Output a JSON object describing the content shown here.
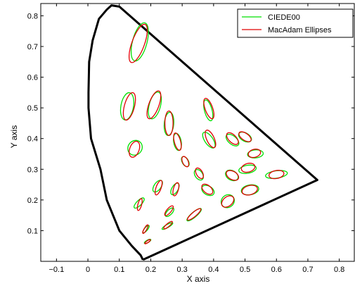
{
  "chart_data": {
    "type": "scatter",
    "title": "",
    "xlabel": "X axis",
    "ylabel": "Y axis",
    "xlim": [
      -0.15,
      0.85
    ],
    "ylim": [
      0.0,
      0.84
    ],
    "xticks": [
      -0.1,
      0,
      0.1,
      0.2,
      0.3,
      0.4,
      0.5,
      0.6,
      0.7,
      0.8
    ],
    "xtick_labels": [
      "−0.1",
      "0",
      "0.1",
      "0.2",
      "0.3",
      "0.4",
      "0.5",
      "0.6",
      "0.7",
      "0.8"
    ],
    "yticks": [
      0.1,
      0.2,
      0.3,
      0.4,
      0.5,
      0.6,
      0.7,
      0.8
    ],
    "ytick_labels": [
      "0.1",
      "0.2",
      "0.3",
      "0.4",
      "0.5",
      "0.6",
      "0.7",
      "0.8"
    ],
    "grid": false,
    "legend_position": "top-right",
    "colors": {
      "ciede00": "#00e000",
      "macadam": "#e00000",
      "locus": "#000000"
    },
    "spectral_locus": [
      [
        0.175,
        0.005
      ],
      [
        0.168,
        0.02
      ],
      [
        0.14,
        0.05
      ],
      [
        0.1,
        0.1
      ],
      [
        0.06,
        0.2
      ],
      [
        0.04,
        0.3
      ],
      [
        0.01,
        0.4
      ],
      [
        0.002,
        0.5
      ],
      [
        0.002,
        0.55
      ],
      [
        0.004,
        0.65
      ],
      [
        0.015,
        0.72
      ],
      [
        0.035,
        0.79
      ],
      [
        0.06,
        0.82
      ],
      [
        0.075,
        0.834
      ],
      [
        0.1,
        0.83
      ],
      [
        0.73,
        0.265
      ],
      [
        0.175,
        0.005
      ]
    ],
    "series": [
      {
        "name": "CIEDE00",
        "ellipses": [
          {
            "cx": 0.165,
            "cy": 0.715,
            "rx": 0.023,
            "ry": 0.064,
            "angle": 15
          },
          {
            "cx": 0.213,
            "cy": 0.508,
            "rx": 0.018,
            "ry": 0.045,
            "angle": 15
          },
          {
            "cx": 0.125,
            "cy": 0.505,
            "rx": 0.02,
            "ry": 0.045,
            "angle": 10
          },
          {
            "cx": 0.258,
            "cy": 0.448,
            "rx": 0.015,
            "ry": 0.038,
            "angle": 5
          },
          {
            "cx": 0.383,
            "cy": 0.492,
            "rx": 0.012,
            "ry": 0.035,
            "angle": -15
          },
          {
            "cx": 0.285,
            "cy": 0.389,
            "rx": 0.012,
            "ry": 0.028,
            "angle": -10
          },
          {
            "cx": 0.385,
            "cy": 0.395,
            "rx": 0.013,
            "ry": 0.03,
            "angle": -35
          },
          {
            "cx": 0.46,
            "cy": 0.395,
            "rx": 0.013,
            "ry": 0.025,
            "angle": -50
          },
          {
            "cx": 0.5,
            "cy": 0.405,
            "rx": 0.013,
            "ry": 0.023,
            "angle": -60
          },
          {
            "cx": 0.15,
            "cy": 0.37,
            "rx": 0.022,
            "ry": 0.025,
            "angle": 40
          },
          {
            "cx": 0.31,
            "cy": 0.325,
            "rx": 0.01,
            "ry": 0.018,
            "angle": -30
          },
          {
            "cx": 0.533,
            "cy": 0.35,
            "rx": 0.025,
            "ry": 0.013,
            "angle": -5
          },
          {
            "cx": 0.353,
            "cy": 0.282,
            "rx": 0.012,
            "ry": 0.019,
            "angle": -35
          },
          {
            "cx": 0.458,
            "cy": 0.28,
            "rx": 0.015,
            "ry": 0.022,
            "angle": -60
          },
          {
            "cx": 0.508,
            "cy": 0.3,
            "rx": 0.028,
            "ry": 0.013,
            "angle": -10
          },
          {
            "cx": 0.6,
            "cy": 0.283,
            "rx": 0.035,
            "ry": 0.012,
            "angle": -8
          },
          {
            "cx": 0.222,
            "cy": 0.245,
            "rx": 0.011,
            "ry": 0.022,
            "angle": 35
          },
          {
            "cx": 0.277,
            "cy": 0.236,
            "rx": 0.01,
            "ry": 0.021,
            "angle": 30
          },
          {
            "cx": 0.382,
            "cy": 0.231,
            "rx": 0.014,
            "ry": 0.022,
            "angle": -60
          },
          {
            "cx": 0.516,
            "cy": 0.233,
            "rx": 0.028,
            "ry": 0.016,
            "angle": -10
          },
          {
            "cx": 0.163,
            "cy": 0.19,
            "rx": 0.008,
            "ry": 0.022,
            "angle": 45
          },
          {
            "cx": 0.445,
            "cy": 0.196,
            "rx": 0.022,
            "ry": 0.02,
            "angle": -40
          },
          {
            "cx": 0.26,
            "cy": 0.16,
            "rx": 0.008,
            "ry": 0.018,
            "angle": 45
          },
          {
            "cx": 0.338,
            "cy": 0.152,
            "rx": 0.008,
            "ry": 0.03,
            "angle": 50
          },
          {
            "cx": 0.185,
            "cy": 0.105,
            "rx": 0.005,
            "ry": 0.015,
            "angle": 40
          },
          {
            "cx": 0.253,
            "cy": 0.115,
            "rx": 0.005,
            "ry": 0.02,
            "angle": 60
          },
          {
            "cx": 0.19,
            "cy": 0.065,
            "rx": 0.004,
            "ry": 0.012,
            "angle": 60
          }
        ]
      },
      {
        "name": "MacAdam Ellipses",
        "ellipses": [
          {
            "cx": 0.16,
            "cy": 0.71,
            "rx": 0.02,
            "ry": 0.066,
            "angle": 20
          },
          {
            "cx": 0.21,
            "cy": 0.51,
            "rx": 0.016,
            "ry": 0.048,
            "angle": 20
          },
          {
            "cx": 0.132,
            "cy": 0.505,
            "rx": 0.016,
            "ry": 0.046,
            "angle": 15
          },
          {
            "cx": 0.258,
            "cy": 0.45,
            "rx": 0.013,
            "ry": 0.04,
            "angle": 0
          },
          {
            "cx": 0.385,
            "cy": 0.498,
            "rx": 0.012,
            "ry": 0.035,
            "angle": -20
          },
          {
            "cx": 0.285,
            "cy": 0.39,
            "rx": 0.01,
            "ry": 0.029,
            "angle": -15
          },
          {
            "cx": 0.39,
            "cy": 0.399,
            "rx": 0.012,
            "ry": 0.031,
            "angle": -25
          },
          {
            "cx": 0.46,
            "cy": 0.4,
            "rx": 0.012,
            "ry": 0.024,
            "angle": -45
          },
          {
            "cx": 0.5,
            "cy": 0.406,
            "rx": 0.011,
            "ry": 0.023,
            "angle": -55
          },
          {
            "cx": 0.148,
            "cy": 0.365,
            "rx": 0.015,
            "ry": 0.027,
            "angle": 20
          },
          {
            "cx": 0.31,
            "cy": 0.325,
            "rx": 0.009,
            "ry": 0.018,
            "angle": -25
          },
          {
            "cx": 0.53,
            "cy": 0.352,
            "rx": 0.02,
            "ry": 0.013,
            "angle": -15
          },
          {
            "cx": 0.355,
            "cy": 0.287,
            "rx": 0.01,
            "ry": 0.019,
            "angle": -30
          },
          {
            "cx": 0.46,
            "cy": 0.28,
            "rx": 0.013,
            "ry": 0.022,
            "angle": -60
          },
          {
            "cx": 0.51,
            "cy": 0.305,
            "rx": 0.022,
            "ry": 0.014,
            "angle": -15
          },
          {
            "cx": 0.6,
            "cy": 0.283,
            "rx": 0.024,
            "ry": 0.013,
            "angle": -10
          },
          {
            "cx": 0.225,
            "cy": 0.24,
            "rx": 0.008,
            "ry": 0.025,
            "angle": 20
          },
          {
            "cx": 0.28,
            "cy": 0.235,
            "rx": 0.008,
            "ry": 0.022,
            "angle": 15
          },
          {
            "cx": 0.38,
            "cy": 0.235,
            "rx": 0.012,
            "ry": 0.021,
            "angle": -50
          },
          {
            "cx": 0.515,
            "cy": 0.232,
            "rx": 0.025,
            "ry": 0.015,
            "angle": -15
          },
          {
            "cx": 0.165,
            "cy": 0.185,
            "rx": 0.006,
            "ry": 0.02,
            "angle": 15
          },
          {
            "cx": 0.445,
            "cy": 0.195,
            "rx": 0.022,
            "ry": 0.015,
            "angle": -40
          },
          {
            "cx": 0.258,
            "cy": 0.165,
            "rx": 0.007,
            "ry": 0.02,
            "angle": 40
          },
          {
            "cx": 0.338,
            "cy": 0.153,
            "rx": 0.007,
            "ry": 0.028,
            "angle": 50
          },
          {
            "cx": 0.183,
            "cy": 0.105,
            "rx": 0.004,
            "ry": 0.016,
            "angle": 30
          },
          {
            "cx": 0.255,
            "cy": 0.118,
            "rx": 0.005,
            "ry": 0.018,
            "angle": 50
          },
          {
            "cx": 0.19,
            "cy": 0.064,
            "rx": 0.003,
            "ry": 0.011,
            "angle": 55
          }
        ]
      }
    ]
  }
}
